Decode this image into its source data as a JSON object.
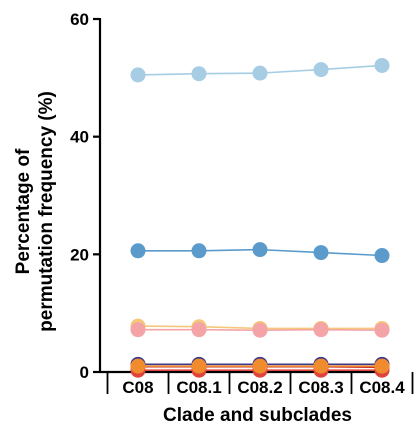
{
  "chart_data": {
    "type": "line",
    "title": "",
    "xlabel": "Clade and subclades",
    "ylabel_lines": [
      "Percentage of",
      "permutation frequency (%)"
    ],
    "categories": [
      "C08",
      "C08.1",
      "C08.2",
      "C08.3",
      "C08.4"
    ],
    "ylim": [
      0,
      60
    ],
    "yticks": [
      0,
      20,
      40,
      60
    ],
    "grid": false,
    "legend": "none",
    "series": [
      {
        "color": "#a6cde3",
        "values": [
          50.5,
          50.7,
          50.8,
          51.4,
          52.1
        ]
      },
      {
        "color": "#5b9bcb",
        "values": [
          20.6,
          20.6,
          20.8,
          20.3,
          19.8
        ]
      },
      {
        "color": "#f5c77a",
        "values": [
          7.8,
          7.7,
          7.4,
          7.4,
          7.4
        ]
      },
      {
        "color": "#f4a4a6",
        "values": [
          7.2,
          7.2,
          7.1,
          7.2,
          7.1
        ]
      },
      {
        "color": "#3e3a87",
        "values": [
          1.3,
          1.3,
          1.3,
          1.3,
          1.3
        ]
      },
      {
        "color": "#c5352b",
        "values": [
          0.9,
          0.9,
          0.9,
          0.9,
          0.8
        ]
      },
      {
        "color": "#e0433a",
        "values": [
          0.3,
          0.3,
          0.3,
          0.3,
          0.3
        ]
      },
      {
        "color": "#f08c2e",
        "values": [
          1.0,
          1.0,
          1.0,
          1.0,
          1.0
        ]
      }
    ]
  }
}
